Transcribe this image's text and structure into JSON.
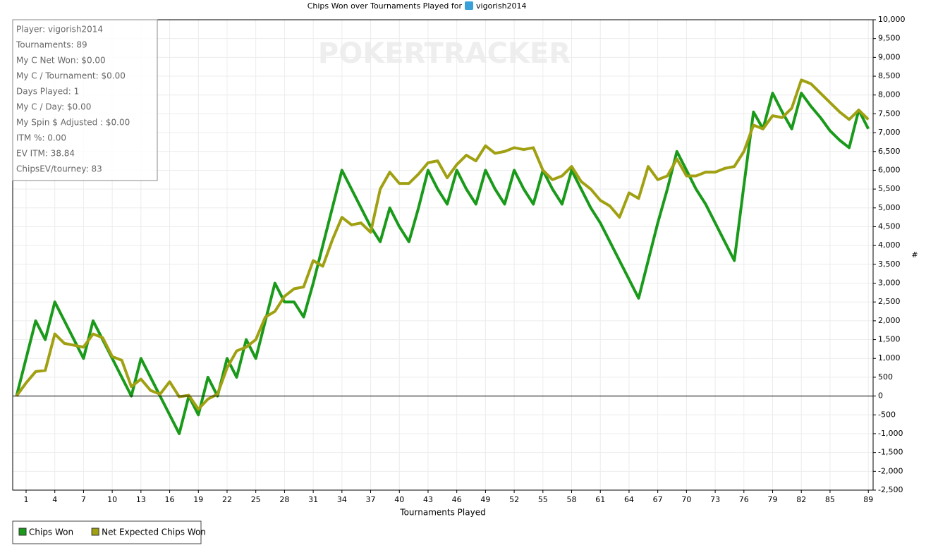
{
  "chart_data": {
    "type": "line",
    "title": "Chips Won over Tournaments Played for",
    "title_user": "vigorish2014",
    "watermark": "POKERTRACKER",
    "x_label": "Tournaments Played",
    "y_label": "#",
    "stats": [
      "Player: vigorish2014",
      "Tournaments: 89",
      "My C Net Won: $0.00",
      "My C / Tournament: $0.00",
      "Days Played: 1",
      "My C / Day: $0.00",
      "My Spin $ Adjusted : $0.00",
      "ITM %: 0.00",
      "EV ITM: 38.84",
      "ChipsEV/tourney: 83"
    ],
    "x": [
      0,
      1,
      2,
      3,
      4,
      5,
      6,
      7,
      8,
      9,
      10,
      11,
      12,
      13,
      14,
      15,
      16,
      17,
      18,
      19,
      20,
      21,
      22,
      23,
      24,
      25,
      26,
      27,
      28,
      29,
      30,
      31,
      32,
      33,
      34,
      35,
      36,
      37,
      38,
      39,
      40,
      41,
      42,
      43,
      44,
      45,
      46,
      47,
      48,
      49,
      50,
      51,
      52,
      53,
      54,
      55,
      56,
      57,
      58,
      59,
      60,
      61,
      62,
      63,
      64,
      65,
      66,
      67,
      68,
      69,
      70,
      71,
      72,
      73,
      74,
      75,
      76,
      77,
      78,
      79,
      80,
      81,
      82,
      83,
      84,
      85,
      86,
      87,
      88,
      89
    ],
    "series": [
      {
        "name": "Chips Won",
        "color": "#1a9a1a",
        "values": [
          0,
          1000,
          2000,
          1500,
          2500,
          2000,
          1500,
          1000,
          2000,
          1500,
          1000,
          500,
          0,
          1000,
          500,
          0,
          -500,
          -1000,
          0,
          -500,
          500,
          0,
          1000,
          500,
          1500,
          1000,
          2000,
          3000,
          2500,
          2500,
          2100,
          3000,
          4000,
          5000,
          6000,
          5500,
          5000,
          4500,
          4100,
          5000,
          4500,
          4100,
          5000,
          6000,
          5500,
          5100,
          6000,
          5500,
          5100,
          6000,
          5500,
          5100,
          6000,
          5500,
          5100,
          6000,
          5500,
          5100,
          6000,
          5500,
          5000,
          4600,
          4100,
          3600,
          3100,
          2600,
          3600,
          4600,
          5500,
          6500,
          6000,
          5500,
          5100,
          4600,
          4100,
          3600,
          5600,
          7550,
          7100,
          8050,
          7550,
          7100,
          8050,
          7700,
          7400,
          7050,
          6800,
          6600,
          7600,
          7100
        ]
      },
      {
        "name": "Net Expected Chips Won",
        "color": "#a0a012",
        "values": [
          0,
          350,
          650,
          680,
          1650,
          1400,
          1350,
          1300,
          1650,
          1550,
          1050,
          950,
          250,
          450,
          150,
          50,
          380,
          -20,
          20,
          -350,
          -80,
          50,
          750,
          1200,
          1300,
          1500,
          2100,
          2250,
          2650,
          2850,
          2900,
          3600,
          3450,
          4150,
          4750,
          4550,
          4600,
          4350,
          5500,
          5950,
          5650,
          5650,
          5900,
          6200,
          6250,
          5800,
          6150,
          6400,
          6250,
          6650,
          6450,
          6500,
          6600,
          6550,
          6600,
          6000,
          5750,
          5850,
          6100,
          5700,
          5500,
          5200,
          5050,
          4750,
          5400,
          5250,
          6100,
          5750,
          5850,
          6300,
          5850,
          5850,
          5950,
          5950,
          6050,
          6100,
          6500,
          7200,
          7100,
          7450,
          7400,
          7650,
          8400,
          8300,
          8050,
          7800,
          7550,
          7350,
          7600,
          7350
        ]
      }
    ],
    "xlim": [
      -0.4,
      89.5
    ],
    "xticks": [
      1,
      4,
      7,
      10,
      13,
      16,
      19,
      22,
      25,
      28,
      31,
      34,
      37,
      40,
      43,
      46,
      49,
      52,
      55,
      58,
      61,
      64,
      67,
      70,
      73,
      76,
      79,
      82,
      85,
      89
    ],
    "ylim": [
      -2500,
      10000
    ],
    "yticks": [
      {
        "value": -2500,
        "label": "-2,500"
      },
      {
        "value": -2000,
        "label": "-2,000"
      },
      {
        "value": -1500,
        "label": "-1,500"
      },
      {
        "value": -1000,
        "label": "-1,000"
      },
      -500,
      0,
      500,
      {
        "value": 1000,
        "label": "1,000"
      },
      {
        "value": 1500,
        "label": "1,500"
      },
      {
        "value": 2000,
        "label": "2,000"
      },
      {
        "value": 2500,
        "label": "2,500"
      },
      {
        "value": 3000,
        "label": "3,000"
      },
      {
        "value": 3500,
        "label": "3,500"
      },
      {
        "value": 4000,
        "label": "4,000"
      },
      {
        "value": 4500,
        "label": "4,500"
      },
      {
        "value": 5000,
        "label": "5,000"
      },
      {
        "value": 5500,
        "label": "5,500"
      },
      {
        "value": 6000,
        "label": "6,000"
      },
      {
        "value": 6500,
        "label": "6,500"
      },
      {
        "value": 7000,
        "label": "7,000"
      },
      {
        "value": 7500,
        "label": "7,500"
      },
      {
        "value": 8000,
        "label": "8,000"
      },
      {
        "value": 8500,
        "label": "8,500"
      },
      {
        "value": 9000,
        "label": "9,000"
      },
      {
        "value": 9500,
        "label": "9,500"
      },
      {
        "value": 10000,
        "label": "10,000"
      }
    ],
    "grid": true
  }
}
